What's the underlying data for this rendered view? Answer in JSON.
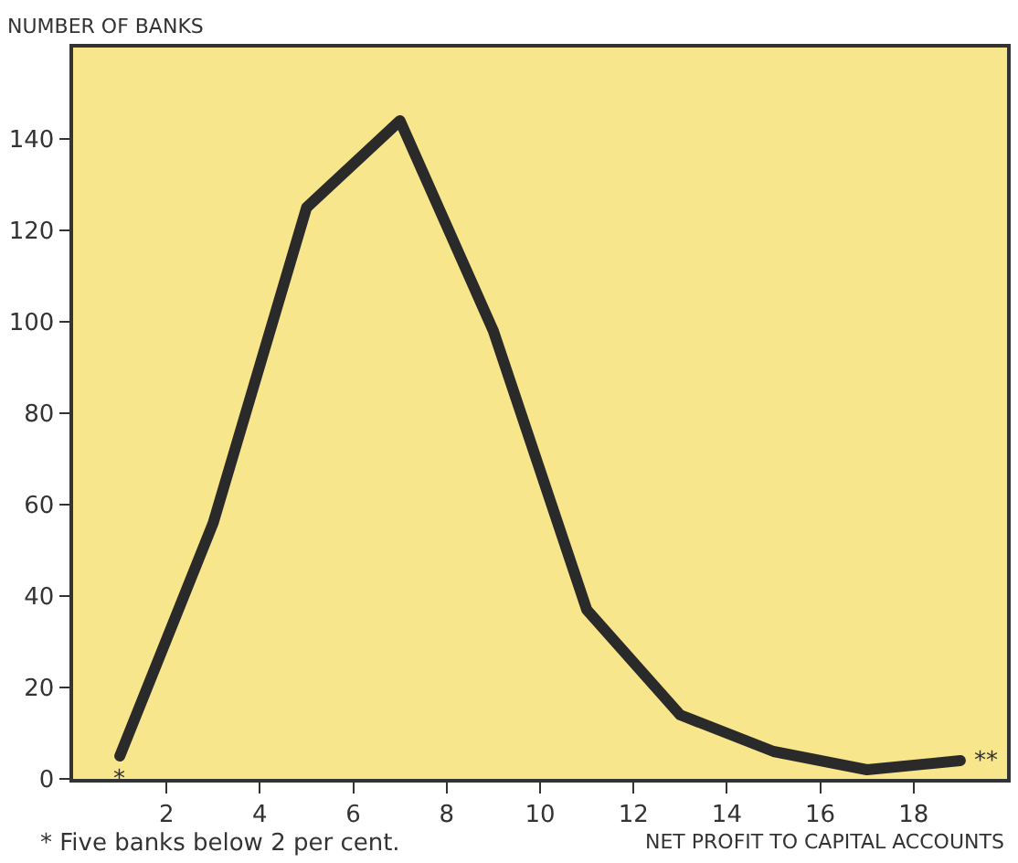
{
  "chart_data": {
    "type": "line",
    "xlabel": "NET PROFIT TO CAPITAL ACCOUNTS",
    "ylabel": "NUMBER OF BANKS",
    "x": [
      1,
      3,
      5,
      7,
      9,
      11,
      13,
      15,
      17,
      19
    ],
    "series": [
      {
        "color": "#2a2a2a",
        "values": [
          5,
          56,
          125,
          144,
          98,
          37,
          14,
          6,
          2,
          4
        ]
      }
    ],
    "xlim": [
      0,
      20
    ],
    "ylim": [
      0,
      160
    ],
    "xticks": [
      2,
      4,
      6,
      8,
      10,
      12,
      14,
      16,
      18
    ],
    "yticks": [
      0,
      20,
      40,
      60,
      80,
      100,
      120,
      140
    ],
    "grid": false,
    "marker": "none",
    "line_style": "solid",
    "annotations": [
      "*",
      "**",
      "* Five banks below 2 per cent."
    ]
  }
}
